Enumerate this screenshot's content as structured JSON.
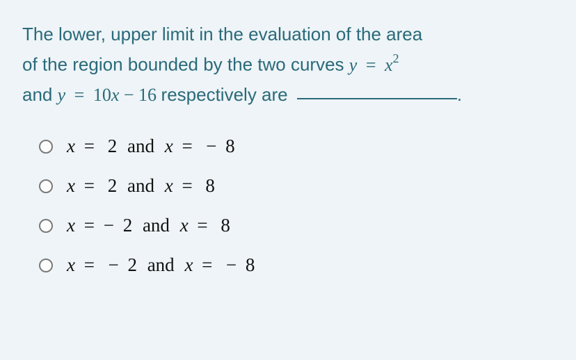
{
  "colors": {
    "background": "#eef4f7",
    "question_text": "#2a6a7a",
    "option_text": "#111111",
    "radio_border": "#7a7a7a",
    "blank_line": "#2a6a7a"
  },
  "typography": {
    "question_fontsize": 26,
    "question_lineheight": 1.65,
    "option_fontsize": 27,
    "question_font": "sans-serif",
    "option_font": "serif-math"
  },
  "question": {
    "line1": "The lower, upper limit in the evaluation of the area",
    "line2_pre": "of the region bounded by the two curves ",
    "eq1_lhs": "y",
    "eq_sign": "=",
    "eq1_rhs_base": "x",
    "eq1_rhs_exp": "2",
    "line3_pre": "and ",
    "eq2_lhs": "y",
    "eq2_rhs": "10x − 16",
    "line3_post": " respectively are ",
    "period": "."
  },
  "options": [
    {
      "x1_sign": "",
      "x1_val": "2",
      "x2_sign": "− ",
      "x2_val": "8"
    },
    {
      "x1_sign": "",
      "x1_val": "2",
      "x2_sign": "",
      "x2_val": "8"
    },
    {
      "x1_sign": "− ",
      "x1_val": "2",
      "x2_sign": "",
      "x2_val": "8"
    },
    {
      "x1_sign": "− ",
      "x1_val": "2",
      "x2_sign": "− ",
      "x2_val": "8"
    }
  ],
  "labels": {
    "var_x": "x",
    "eq": "=",
    "and": "and"
  }
}
